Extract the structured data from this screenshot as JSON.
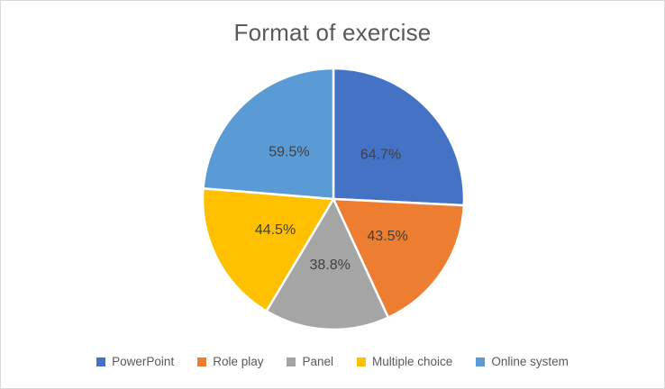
{
  "title": "Format of exercise",
  "chart_data": {
    "type": "pie",
    "title": "Format of exercise",
    "categories": [
      "PowerPoint",
      "Role play",
      "Panel",
      "Multiple choice",
      "Online system"
    ],
    "values": [
      64.7,
      43.5,
      38.8,
      44.5,
      59.5
    ],
    "slice_labels": [
      "64.7%",
      "43.5%",
      "38.8%",
      "44.5%",
      "59.5%"
    ],
    "colors": [
      "#4472C4",
      "#ED7D31",
      "#A5A5A5",
      "#FFC000",
      "#5B9BD5"
    ],
    "start_angle_deg": 0,
    "direction": "clockwise",
    "legend_position": "bottom",
    "slice_border_color": "#FFFFFF",
    "label_color": "#404040",
    "title_color": "#595959",
    "legend_text_color": "#595959"
  },
  "legend": {
    "items": [
      {
        "label": "PowerPoint",
        "color": "#4472C4"
      },
      {
        "label": "Role play",
        "color": "#ED7D31"
      },
      {
        "label": "Panel",
        "color": "#A5A5A5"
      },
      {
        "label": "Multiple choice",
        "color": "#FFC000"
      },
      {
        "label": "Online system",
        "color": "#5B9BD5"
      }
    ]
  }
}
